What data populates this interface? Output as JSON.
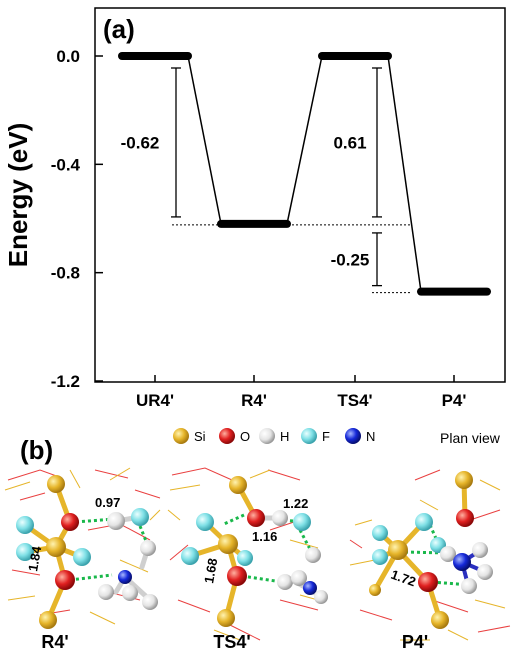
{
  "figure": {
    "panel_a_label": "(a)",
    "panel_b_label": "(b)"
  },
  "chart_data": {
    "type": "energy-profile",
    "ylabel": "Energy (eV)",
    "xlabel": "",
    "ylim": [
      -1.2,
      0.0
    ],
    "y_ticks": [
      "0.0",
      "-0.4",
      "-0.8",
      "-1.2"
    ],
    "y_tick_values": [
      0.0,
      -0.4,
      -0.8,
      -1.2
    ],
    "categories": [
      "UR4'",
      "R4'",
      "TS4'",
      "P4'"
    ],
    "values": [
      0.0,
      -0.62,
      0.0,
      -0.87
    ],
    "annotations": [
      {
        "label": "-0.62",
        "from_state": 0,
        "from": 0.0,
        "to": -0.62
      },
      {
        "label": "0.61",
        "from_state": 2,
        "from": 0.0,
        "to": -0.62
      },
      {
        "label": "-0.25",
        "from_state": 2,
        "from": -0.62,
        "to": -0.87
      }
    ],
    "grid": false
  },
  "legend_b": {
    "items": [
      {
        "symbol": "Si",
        "color": "#e6b52a"
      },
      {
        "symbol": "O",
        "color": "#e02020"
      },
      {
        "symbol": "H",
        "color": "#e8e8e8"
      },
      {
        "symbol": "F",
        "color": "#7fe0e6"
      },
      {
        "symbol": "N",
        "color": "#1528d8"
      }
    ],
    "plan_view": "Plan view"
  },
  "structures": [
    {
      "name": "R4'",
      "bonds": [
        "0.97",
        "1.84"
      ]
    },
    {
      "name": "TS4'",
      "bonds": [
        "1.22",
        "1.16",
        "1.68"
      ]
    },
    {
      "name": "P4'",
      "bonds": [
        "1.72"
      ]
    }
  ]
}
